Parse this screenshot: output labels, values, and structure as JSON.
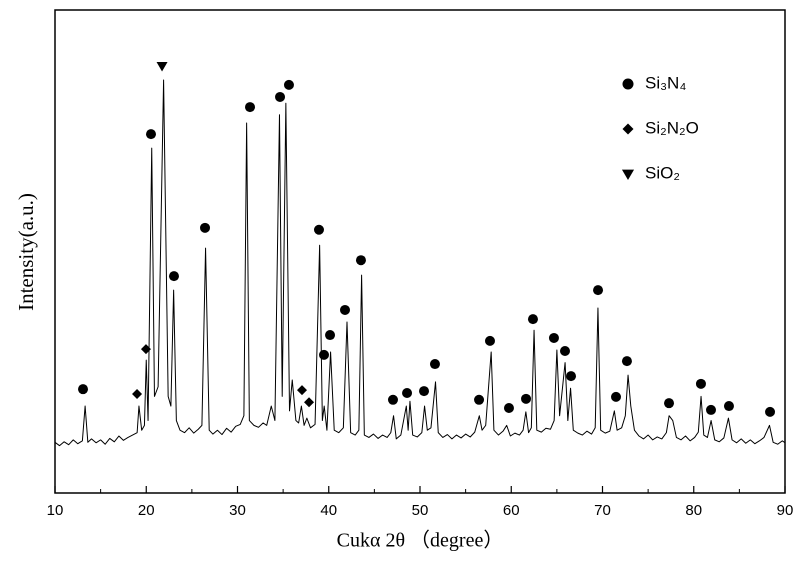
{
  "chart_data": {
    "type": "line",
    "xlabel": "Cukα 2θ （degree）",
    "ylabel": "Intensity(a.u.)",
    "xlim": [
      10,
      90
    ],
    "xticks": [
      10,
      20,
      30,
      40,
      50,
      60,
      70,
      80,
      90
    ],
    "xminorticks": [
      15,
      25,
      35,
      45,
      55,
      65,
      75,
      85
    ],
    "ylim": [
      0,
      100
    ],
    "x": [
      10,
      10.5,
      11,
      11.5,
      12,
      12.5,
      13.0,
      13.3,
      13.6,
      14,
      14.5,
      15,
      15.5,
      16,
      16.5,
      17,
      17.5,
      18,
      18.5,
      19.0,
      19.2,
      19.5,
      19.8,
      20.0,
      20.2,
      20.6,
      20.9,
      21.3,
      21.9,
      22.4,
      22.7,
      23.0,
      23.3,
      23.7,
      24.2,
      24.7,
      25.2,
      25.7,
      26.1,
      26.5,
      26.9,
      27.3,
      27.8,
      28.3,
      28.8,
      29.3,
      29.8,
      30.3,
      30.7,
      31.0,
      31.3,
      31.8,
      32.3,
      32.8,
      33.2,
      33.7,
      34.1,
      34.6,
      34.9,
      35.3,
      35.7,
      36.0,
      36.4,
      36.7,
      37.0,
      37.3,
      37.6,
      38.0,
      38.5,
      39.0,
      39.3,
      39.5,
      39.8,
      40.2,
      40.6,
      41.1,
      41.6,
      42.0,
      42.4,
      42.9,
      43.3,
      43.6,
      43.9,
      44.4,
      44.9,
      45.4,
      45.9,
      46.4,
      46.8,
      47.1,
      47.4,
      47.9,
      48.5,
      48.7,
      48.9,
      49.2,
      49.7,
      50.2,
      50.5,
      50.8,
      51.2,
      51.7,
      52.0,
      52.5,
      53.0,
      53.5,
      54.0,
      54.5,
      55.0,
      55.5,
      56.0,
      56.5,
      56.8,
      57.2,
      57.8,
      58.1,
      58.6,
      59.1,
      59.5,
      59.9,
      60.4,
      60.9,
      61.3,
      61.6,
      61.9,
      62.2,
      62.5,
      62.8,
      63.3,
      63.8,
      64.3,
      64.7,
      65.0,
      65.3,
      65.9,
      66.2,
      66.5,
      66.8,
      67.3,
      67.8,
      68.3,
      68.8,
      69.2,
      69.5,
      69.8,
      70.3,
      70.8,
      71.3,
      71.6,
      72.1,
      72.5,
      72.8,
      73.1,
      73.5,
      74.0,
      74.5,
      75.0,
      75.5,
      76.0,
      76.5,
      77.0,
      77.3,
      77.7,
      78.1,
      78.6,
      79.1,
      79.6,
      80.1,
      80.5,
      80.8,
      81.1,
      81.5,
      81.9,
      82.3,
      82.8,
      83.3,
      83.8,
      84.2,
      84.7,
      85.2,
      85.7,
      86.2,
      86.7,
      87.2,
      87.7,
      88.3,
      88.7,
      89.2,
      89.7,
      90
    ],
    "series": [
      {
        "color": "#000000",
        "values": [
          10.5,
          9.8,
          10.6,
          10.0,
          11.0,
          10.2,
          10.8,
          18,
          10.5,
          11.2,
          10.4,
          11.0,
          10.1,
          11.3,
          10.6,
          11.8,
          10.9,
          11.5,
          12.0,
          12.5,
          18,
          13,
          14,
          27.5,
          15,
          71.4,
          20,
          22,
          85.5,
          20,
          18,
          42,
          15,
          13,
          12.5,
          13.5,
          12.4,
          13.2,
          14,
          50.7,
          13,
          12.2,
          13.0,
          12.1,
          13.4,
          12.6,
          13.8,
          14.2,
          16,
          76.6,
          15,
          14,
          13.6,
          14.5,
          14,
          18,
          15,
          78.3,
          20,
          80.7,
          17,
          23.4,
          15,
          14.5,
          18,
          14,
          15.5,
          13.5,
          14.2,
          51.3,
          15,
          18,
          13,
          29.2,
          13,
          12.5,
          13.5,
          35.4,
          12.5,
          12.0,
          13,
          45.1,
          12,
          11.5,
          12.2,
          11.3,
          12.0,
          11.5,
          12.5,
          16,
          11.2,
          12.0,
          18,
          13,
          19,
          12,
          11.6,
          12.5,
          18,
          13,
          13.5,
          23,
          12.5,
          11.5,
          12.1,
          11.2,
          12.0,
          11.4,
          12.2,
          11.6,
          12.6,
          16,
          13,
          14,
          29.2,
          13,
          12.0,
          12.8,
          14,
          11.8,
          12.4,
          12.0,
          13,
          16.8,
          12.5,
          13.5,
          33.7,
          13,
          12.6,
          13.4,
          13.2,
          15,
          29.6,
          16,
          27,
          15,
          21.7,
          13,
          12.4,
          12.0,
          12.8,
          12.2,
          13.5,
          38.3,
          13,
          12.4,
          12.8,
          17,
          13,
          13.5,
          16,
          24.4,
          18,
          13,
          11.8,
          11.2,
          12.0,
          11.0,
          11.6,
          11.2,
          12.5,
          16,
          15,
          11.5,
          11.0,
          11.8,
          10.8,
          11.5,
          12.6,
          20,
          12,
          11.5,
          15,
          11,
          10.6,
          11.4,
          15.5,
          11,
          10.4,
          11.2,
          10.3,
          11.0,
          10.2,
          10.8,
          11.5,
          14,
          10.5,
          10.1,
          10.8,
          10.4
        ]
      }
    ],
    "markers": [
      {
        "name": "Si₃N₄",
        "symbol": "circle",
        "color": "#000000",
        "x": [
          13.07,
          20.52,
          23.04,
          26.44,
          31.37,
          34.66,
          35.64,
          38.93,
          39.48,
          40.14,
          41.78,
          43.53,
          47.04,
          48.58,
          50.44,
          51.64,
          56.47,
          57.67,
          59.75,
          61.62,
          62.38,
          64.68,
          65.89,
          66.55,
          69.51,
          71.48,
          72.68,
          77.29,
          80.79,
          81.89,
          83.86,
          88.36
        ],
        "values": [
          21.5,
          74.3,
          44.9,
          54.9,
          79.9,
          82.0,
          84.5,
          54.5,
          28.6,
          32.7,
          37.9,
          48.2,
          19.3,
          20.7,
          21.1,
          26.7,
          19.3,
          31.5,
          17.6,
          19.5,
          36.0,
          32.1,
          29.4,
          24.2,
          42.0,
          19.9,
          27.3,
          18.6,
          22.6,
          17.2,
          18.0,
          16.8
        ]
      },
      {
        "name": "Si₂N₂O",
        "symbol": "diamond",
        "color": "#000000",
        "x": [
          18.99,
          19.97,
          37.07,
          37.84
        ],
        "values": [
          20.5,
          29.8,
          21.3,
          18.8
        ]
      },
      {
        "name": "SiO₂",
        "symbol": "triangle-down",
        "color": "#000000",
        "x": [
          21.73
        ],
        "values": [
          88.4
        ]
      }
    ]
  }
}
